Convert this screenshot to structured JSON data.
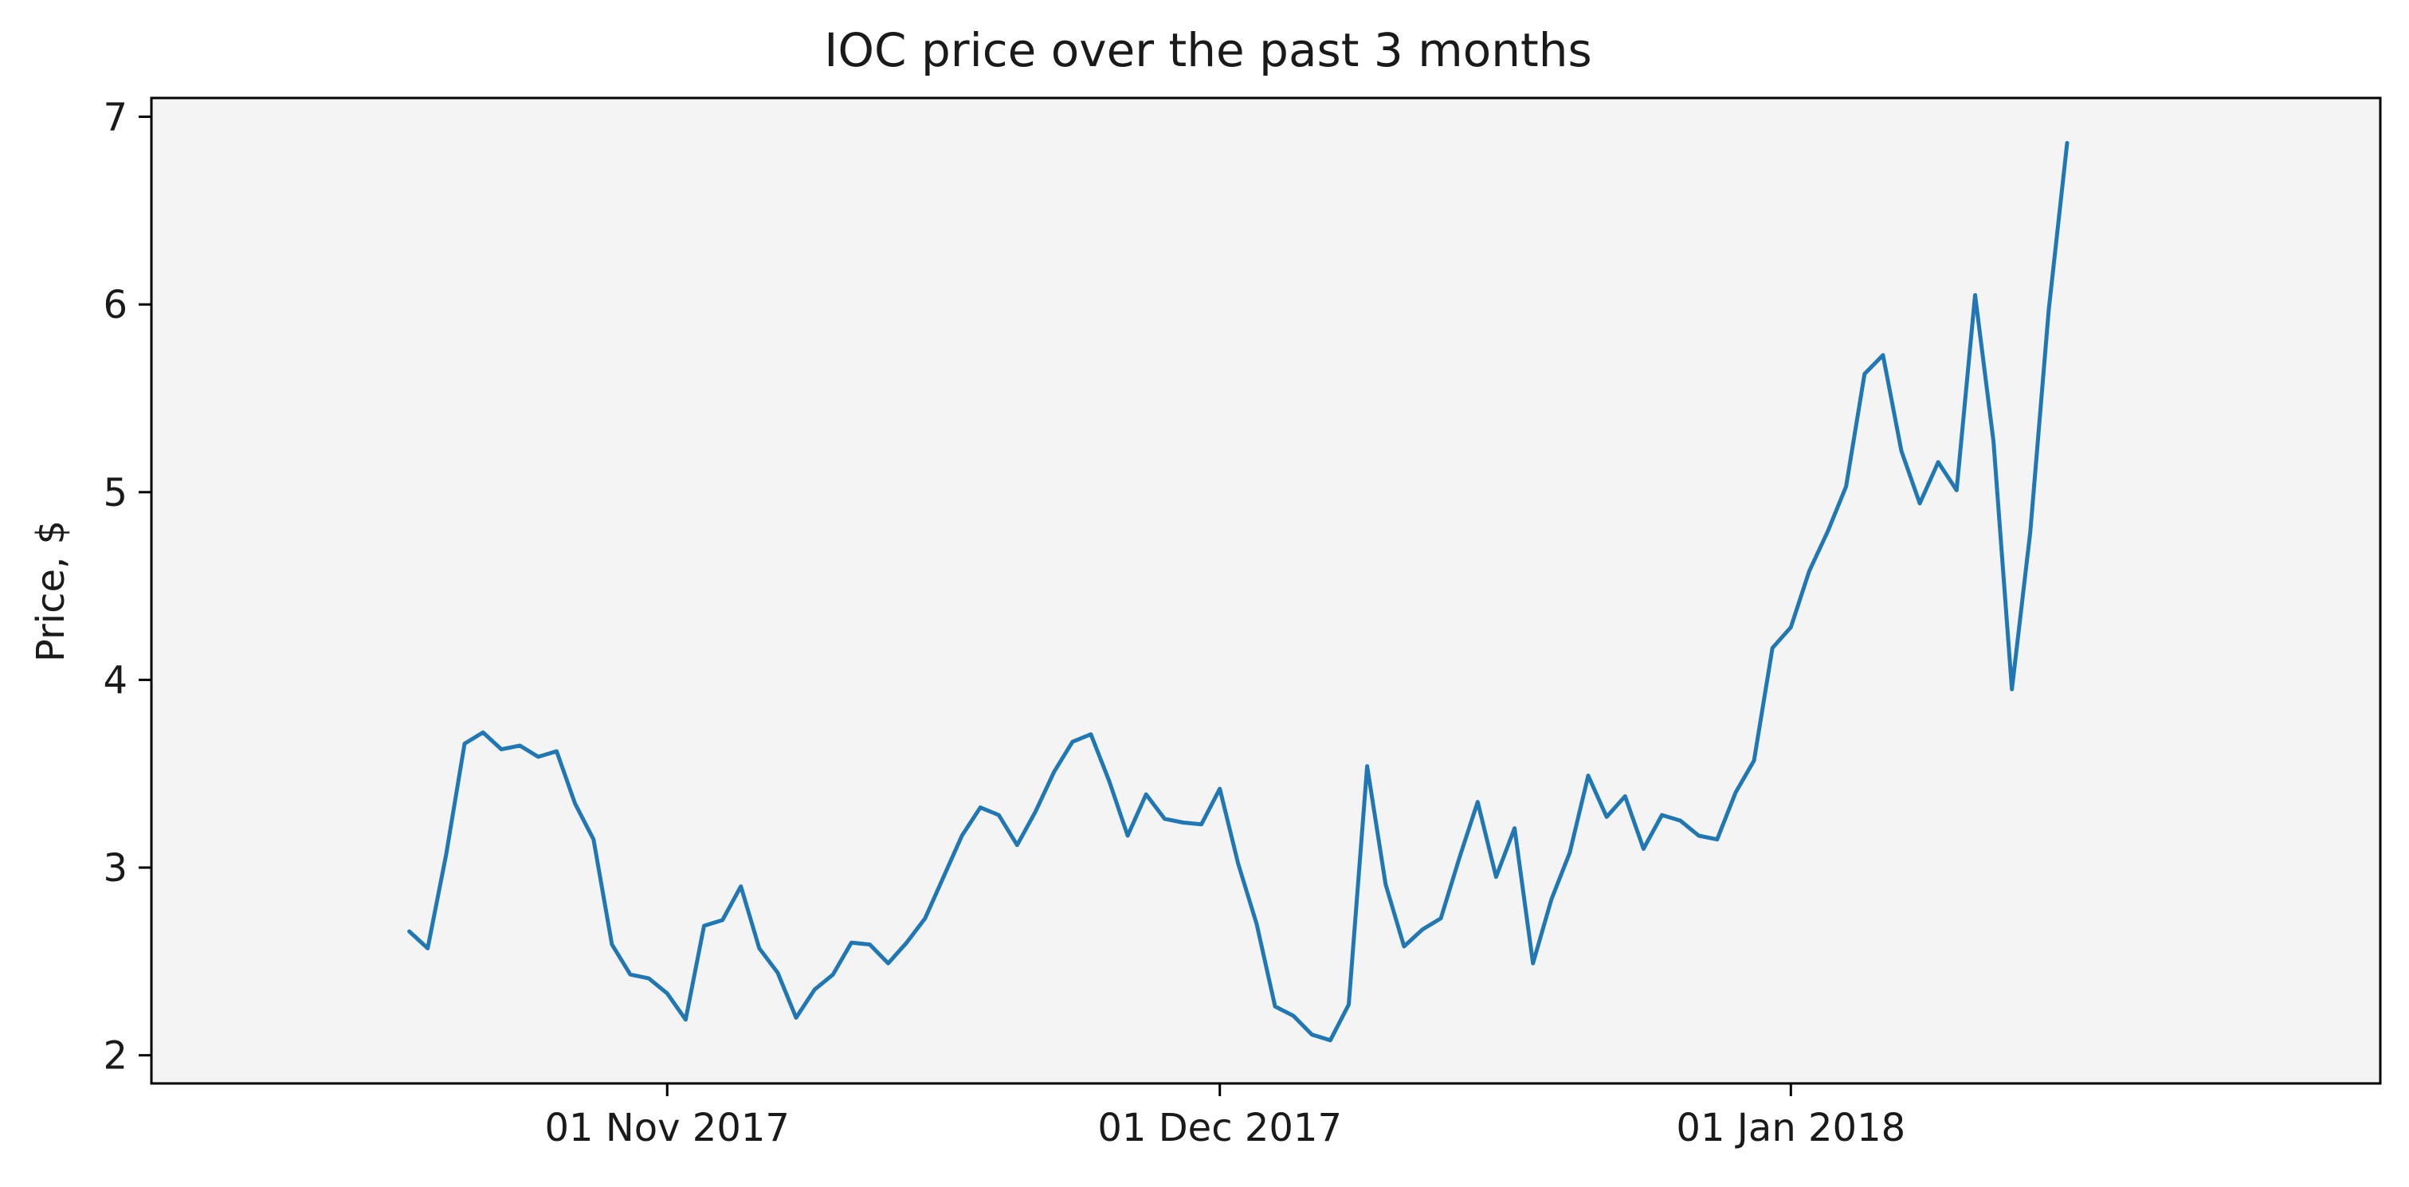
{
  "chart_data": {
    "type": "line",
    "title": "IOC price over the past 3 months",
    "xlabel": "",
    "ylabel": "Price, $",
    "x_start": "2017-10-18",
    "x_step_days": 1,
    "x_ticks": [
      {
        "date": "2017-11-01",
        "label": "01 Nov 2017"
      },
      {
        "date": "2017-12-01",
        "label": "01 Dec 2017"
      },
      {
        "date": "2018-01-01",
        "label": "01 Jan 2018"
      }
    ],
    "xlim": [
      "2017-10-04",
      "2018-02-02"
    ],
    "y_ticks": [
      2,
      3,
      4,
      5,
      6,
      7
    ],
    "ylim": [
      1.85,
      7.1
    ],
    "grid": false,
    "plot_background": "#f4f4f4",
    "line_color": "#1f77b4",
    "series": [
      {
        "values": [
          2.66,
          2.57,
          3.07,
          3.66,
          3.72,
          3.63,
          3.65,
          3.59,
          3.62,
          3.34,
          3.15,
          2.59,
          2.43,
          2.41,
          2.33,
          2.19,
          2.69,
          2.72,
          2.9,
          2.57,
          2.44,
          2.2,
          2.35,
          2.43,
          2.6,
          2.59,
          2.49,
          2.6,
          2.73,
          2.95,
          3.17,
          3.32,
          3.28,
          3.12,
          3.3,
          3.51,
          3.67,
          3.71,
          3.46,
          3.17,
          3.39,
          3.26,
          3.24,
          3.23,
          3.42,
          3.02,
          2.7,
          2.26,
          2.21,
          2.11,
          2.08,
          2.27,
          3.54,
          2.91,
          2.58,
          2.67,
          2.73,
          3.05,
          3.35,
          2.95,
          3.21,
          2.49,
          2.83,
          3.08,
          3.49,
          3.27,
          3.38,
          3.1,
          3.28,
          3.25,
          3.17,
          3.15,
          3.4,
          3.57,
          4.17,
          4.28,
          4.58,
          4.79,
          5.03,
          5.63,
          5.73,
          5.22,
          4.94,
          5.16,
          5.01,
          6.05,
          5.27,
          3.95,
          4.79,
          5.97,
          6.86
        ]
      }
    ]
  }
}
